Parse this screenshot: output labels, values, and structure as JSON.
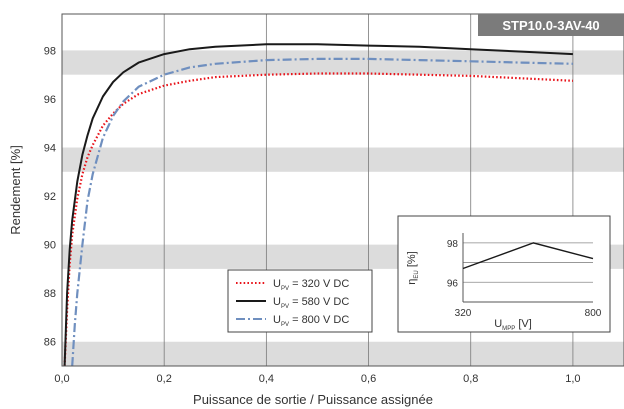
{
  "chart_data": [
    {
      "type": "line",
      "badge": "STP10.0-3AV-40",
      "xlabel": "Puissance de sortie / Puissance assignée",
      "ylabel": "Rendement [%]",
      "xlim": [
        0,
        1.1
      ],
      "ylim": [
        85,
        99.5
      ],
      "xticks": [
        0,
        0.2,
        0.4,
        0.6,
        0.8,
        1.0
      ],
      "xtick_labels": [
        "0,0",
        "0,2",
        "0,4",
        "0,6",
        "0,8",
        "1,0"
      ],
      "yticks": [
        86,
        88,
        90,
        92,
        94,
        96,
        98
      ],
      "ytick_labels": [
        "86",
        "88",
        "90",
        "92",
        "94",
        "96",
        "98"
      ],
      "grid": true,
      "legend_position": "bottom-center",
      "series": [
        {
          "name": "U_PV = 320 V DC",
          "legend": {
            "main": "U",
            "sub": "PV",
            "rest": " = 320 V DC"
          },
          "color": "#e8141b",
          "style": "dotted",
          "x": [
            0.005,
            0.01,
            0.015,
            0.02,
            0.03,
            0.04,
            0.05,
            0.06,
            0.08,
            0.1,
            0.12,
            0.15,
            0.2,
            0.25,
            0.3,
            0.4,
            0.5,
            0.6,
            0.7,
            0.8,
            0.9,
            1.0
          ],
          "y": [
            85.0,
            87.3,
            89.2,
            90.4,
            91.9,
            92.9,
            93.6,
            94.1,
            94.9,
            95.4,
            95.8,
            96.2,
            96.55,
            96.75,
            96.9,
            97.0,
            97.05,
            97.05,
            97.0,
            96.95,
            96.85,
            96.75
          ]
        },
        {
          "name": "U_PV = 580 V DC",
          "legend": {
            "main": "U",
            "sub": "PV",
            "rest": " = 580 V DC"
          },
          "color": "#1a1a1a",
          "style": "solid",
          "x": [
            0.005,
            0.01,
            0.015,
            0.02,
            0.03,
            0.04,
            0.05,
            0.06,
            0.08,
            0.1,
            0.12,
            0.15,
            0.2,
            0.25,
            0.3,
            0.4,
            0.5,
            0.6,
            0.7,
            0.8,
            0.9,
            1.0
          ],
          "y": [
            85.0,
            88.0,
            89.8,
            91.0,
            92.6,
            93.7,
            94.5,
            95.2,
            96.1,
            96.7,
            97.1,
            97.5,
            97.85,
            98.05,
            98.15,
            98.25,
            98.25,
            98.2,
            98.15,
            98.05,
            97.95,
            97.85
          ]
        },
        {
          "name": "U_PV = 800 V DC",
          "legend": {
            "main": "U",
            "sub": "PV",
            "rest": " = 800 V DC"
          },
          "color": "#6f8fbf",
          "style": "dashdot",
          "x": [
            0.02,
            0.025,
            0.03,
            0.04,
            0.05,
            0.06,
            0.08,
            0.1,
            0.12,
            0.15,
            0.2,
            0.25,
            0.3,
            0.4,
            0.5,
            0.6,
            0.7,
            0.8,
            0.9,
            1.0
          ],
          "y": [
            85.0,
            86.7,
            88.0,
            90.0,
            91.8,
            92.9,
            94.4,
            95.3,
            95.9,
            96.5,
            97.0,
            97.3,
            97.45,
            97.6,
            97.65,
            97.65,
            97.6,
            97.55,
            97.5,
            97.45
          ]
        }
      ]
    },
    {
      "type": "line",
      "xlabel": {
        "main": "U",
        "sub": "MPP",
        "rest": " [V]"
      },
      "ylabel": {
        "main": "η",
        "sub": "EU",
        "rest": " [%]"
      },
      "xlim": [
        320,
        800
      ],
      "ylim": [
        95,
        98.5
      ],
      "xticks": [
        320,
        800
      ],
      "xtick_labels": [
        "320",
        "800"
      ],
      "yticks": [
        96,
        98
      ],
      "ytick_labels": [
        "96",
        "98"
      ],
      "grid": true,
      "series": [
        {
          "color": "#1a1a1a",
          "x": [
            320,
            580,
            800
          ],
          "y": [
            96.7,
            98.0,
            97.2
          ]
        }
      ]
    }
  ]
}
